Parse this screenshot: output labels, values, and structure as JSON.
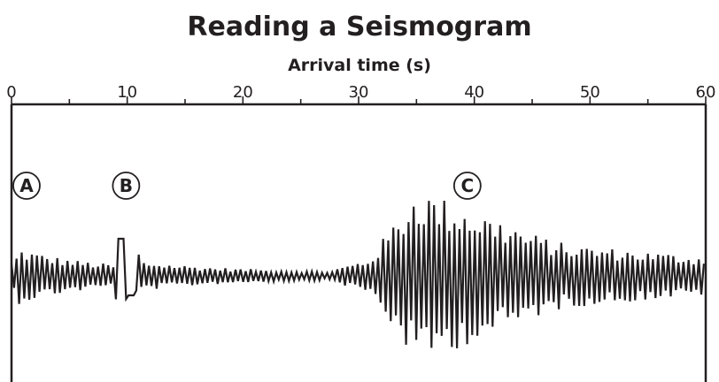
{
  "title": "Reading a Seismogram",
  "axis": {
    "label": "Arrival time (s)",
    "range": [
      0,
      60
    ],
    "major_ticks": [
      {
        "value": 0,
        "label": "0"
      },
      {
        "value": 10,
        "label": "10"
      },
      {
        "value": 20,
        "label": "20"
      },
      {
        "value": 30,
        "label": "30"
      },
      {
        "value": 40,
        "label": "40"
      },
      {
        "value": 50,
        "label": "50"
      },
      {
        "value": 60,
        "label": "60"
      }
    ],
    "minor_step": 5
  },
  "markers": [
    {
      "label": "A",
      "time": 1.3
    },
    {
      "label": "B",
      "time": 9.9
    },
    {
      "label": "C",
      "time": 39.4
    }
  ],
  "phases": {
    "p_wave_arrival": 0,
    "s_wave_arrival": 9,
    "surface_wave_arrival": 31
  }
}
